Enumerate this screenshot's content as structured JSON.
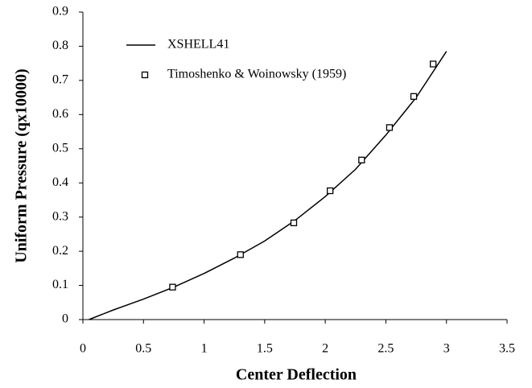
{
  "chart_data": {
    "type": "line",
    "xlabel": "Center Deflection",
    "ylabel": "Uniform Pressure (qx10000)",
    "xlim": [
      0,
      3.5
    ],
    "xticks": [
      0,
      0.5,
      1,
      1.5,
      2,
      2.5,
      3,
      3.5
    ],
    "ylim": [
      0,
      0.9
    ],
    "yticks": [
      0,
      0.1,
      0.2,
      0.3,
      0.4,
      0.5,
      0.6,
      0.7,
      0.8,
      0.9
    ],
    "grid": false,
    "legend": "upper left",
    "series": [
      {
        "name": "XSHELL41",
        "style": "line",
        "color": "#000000",
        "x": [
          0.05,
          0.25,
          0.5,
          0.75,
          1,
          1.25,
          1.5,
          1.75,
          2,
          2.25,
          2.5,
          2.75,
          3
        ],
        "values": [
          0,
          0.028,
          0.06,
          0.095,
          0.135,
          0.18,
          0.23,
          0.29,
          0.36,
          0.44,
          0.54,
          0.65,
          0.785
        ]
      },
      {
        "name": "Timoshenko & Woinowsky (1959)",
        "style": "marker",
        "color": "#000000",
        "x": [
          0.74,
          1.3,
          1.74,
          2.04,
          2.3,
          2.53,
          2.73,
          2.89
        ],
        "values": [
          0.095,
          0.19,
          0.283,
          0.377,
          0.467,
          0.562,
          0.653,
          0.748
        ]
      }
    ]
  }
}
